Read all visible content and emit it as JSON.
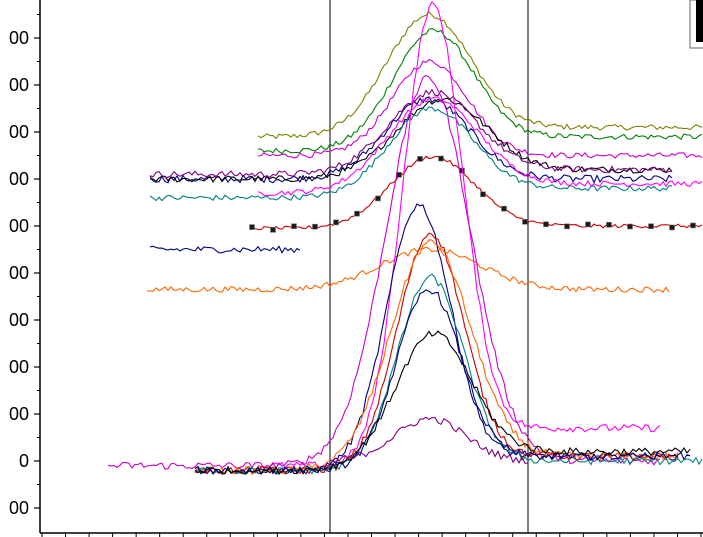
{
  "chart_data": {
    "type": "line",
    "title": "",
    "xlabel": "",
    "ylabel": "",
    "ylim": [
      -100,
      950
    ],
    "y_tick_labels": [
      {
        "value": -100,
        "label": "00"
      },
      {
        "value": 0,
        "label": "0"
      },
      {
        "value": 100,
        "label": "00"
      },
      {
        "value": 200,
        "label": "00"
      },
      {
        "value": 300,
        "label": "00"
      },
      {
        "value": 400,
        "label": "00"
      },
      {
        "value": 500,
        "label": "00"
      },
      {
        "value": 600,
        "label": "00"
      },
      {
        "value": 700,
        "label": "00"
      },
      {
        "value": 800,
        "label": "00"
      },
      {
        "value": 900,
        "label": "00"
      }
    ],
    "x_minor_tick_count": 28,
    "vertical_markers": [
      330,
      528
    ],
    "grid": false,
    "legend": "top-right (clipped)",
    "series": [
      {
        "color": "#808000",
        "x0": 258,
        "x1": 703,
        "peak_x": 428,
        "sigma": 42,
        "base": 690,
        "amp": 250,
        "right": 710,
        "noise": 6,
        "markers": false
      },
      {
        "color": "#008000",
        "x0": 258,
        "x1": 703,
        "peak_x": 432,
        "sigma": 40,
        "base": 660,
        "amp": 240,
        "right": 690,
        "noise": 6,
        "markers": false
      },
      {
        "color": "#CC00CC",
        "x0": 258,
        "x1": 703,
        "peak_x": 430,
        "sigma": 38,
        "base": 650,
        "amp": 200,
        "right": 650,
        "noise": 6,
        "markers": false
      },
      {
        "color": "#000080",
        "x0": 150,
        "x1": 672,
        "peak_x": 428,
        "sigma": 42,
        "base": 600,
        "amp": 170,
        "right": 600,
        "noise": 8,
        "markers": false
      },
      {
        "color": "#000000",
        "x0": 150,
        "x1": 672,
        "peak_x": 440,
        "sigma": 45,
        "base": 600,
        "amp": 160,
        "right": 620,
        "noise": 7,
        "markers": false
      },
      {
        "color": "#800080",
        "x0": 150,
        "x1": 672,
        "peak_x": 432,
        "sigma": 44,
        "base": 610,
        "amp": 170,
        "right": 620,
        "noise": 7,
        "markers": false
      },
      {
        "color": "#008080",
        "x0": 150,
        "x1": 672,
        "peak_x": 430,
        "sigma": 42,
        "base": 560,
        "amp": 180,
        "right": 580,
        "noise": 6,
        "markers": false
      },
      {
        "color": "#FF00FF",
        "x0": 258,
        "x1": 703,
        "peak_x": 432,
        "sigma": 45,
        "base": 570,
        "amp": 190,
        "right": 590,
        "noise": 6,
        "markers": false
      },
      {
        "color": "#CC0000",
        "x0": 252,
        "x1": 703,
        "peak_x": 432,
        "sigma": 42,
        "base": 495,
        "amp": 150,
        "right": 500,
        "noise": 4,
        "markers": true
      },
      {
        "color": "#000080",
        "x0": 150,
        "x1": 300,
        "peak_x": 430,
        "sigma": 40,
        "base": 450,
        "amp": 0,
        "right": 450,
        "noise": 7,
        "markers": false
      },
      {
        "color": "#FF6600",
        "x0": 147,
        "x1": 670,
        "peak_x": 430,
        "sigma": 50,
        "base": 365,
        "amp": 85,
        "right": 365,
        "noise": 6,
        "markers": false
      },
      {
        "color": "#FF00FF",
        "x0": 258,
        "x1": 660,
        "peak_x": 432,
        "sigma": 30,
        "base": -10,
        "amp": 940,
        "right": 70,
        "noise": 8,
        "markers": false
      },
      {
        "color": "#CC00CC",
        "x0": 108,
        "x1": 660,
        "peak_x": 428,
        "sigma": 42,
        "base": -10,
        "amp": 820,
        "right": 0,
        "noise": 8,
        "markers": false
      },
      {
        "color": "#000080",
        "x0": 195,
        "x1": 690,
        "peak_x": 418,
        "sigma": 32,
        "base": -20,
        "amp": 550,
        "right": 10,
        "noise": 8,
        "markers": false
      },
      {
        "color": "#CC0000",
        "x0": 195,
        "x1": 680,
        "peak_x": 430,
        "sigma": 33,
        "base": -20,
        "amp": 490,
        "right": 10,
        "noise": 8,
        "markers": false
      },
      {
        "color": "#FF6600",
        "x0": 195,
        "x1": 680,
        "peak_x": 430,
        "sigma": 40,
        "base": -20,
        "amp": 470,
        "right": 10,
        "noise": 8,
        "markers": false
      },
      {
        "color": "#008080",
        "x0": 195,
        "x1": 703,
        "peak_x": 430,
        "sigma": 33,
        "base": -20,
        "amp": 400,
        "right": 0,
        "noise": 8,
        "markers": false
      },
      {
        "color": "#000080",
        "x0": 195,
        "x1": 680,
        "peak_x": 428,
        "sigma": 32,
        "base": -20,
        "amp": 370,
        "right": 10,
        "noise": 8,
        "markers": false
      },
      {
        "color": "#000000",
        "x0": 195,
        "x1": 690,
        "peak_x": 432,
        "sigma": 38,
        "base": -20,
        "amp": 270,
        "right": 20,
        "noise": 8,
        "markers": false
      },
      {
        "color": "#800080",
        "x0": 330,
        "x1": 530,
        "peak_x": 430,
        "sigma": 35,
        "base": 0,
        "amp": 90,
        "right": 0,
        "noise": 8,
        "markers": false
      }
    ]
  }
}
